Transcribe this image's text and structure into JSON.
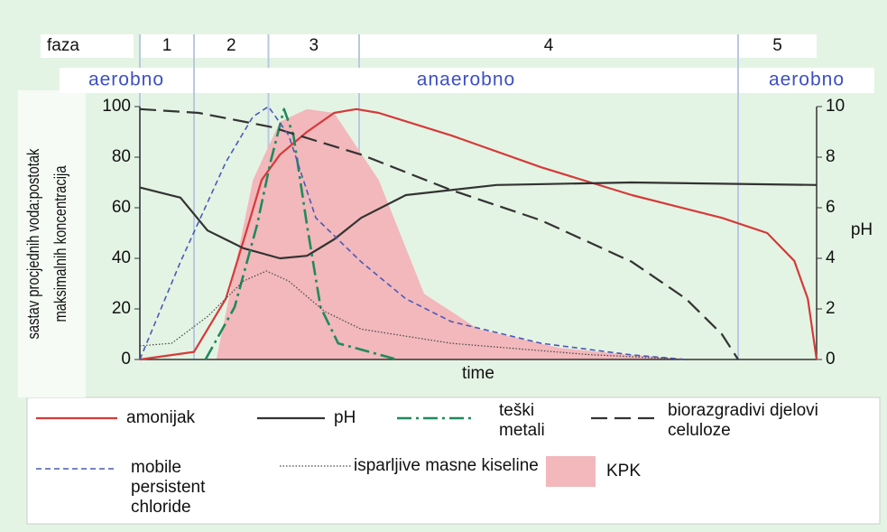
{
  "chart_data": {
    "type": "line",
    "phase_label": "faza",
    "phases": [
      {
        "label": "1",
        "start": 0,
        "end": 8
      },
      {
        "label": "2",
        "start": 8,
        "end": 19
      },
      {
        "label": "3",
        "start": 19,
        "end": 32.4
      },
      {
        "label": "4",
        "start": 32.4,
        "end": 88.4
      },
      {
        "label": "5",
        "start": 88.4,
        "end": 100
      }
    ],
    "regimes": [
      {
        "label": "aerobno",
        "start": 0,
        "end": 8
      },
      {
        "label": "anaerobno",
        "start": 8,
        "end": 88.4
      },
      {
        "label": "aerobno",
        "start": 88.4,
        "end": 100
      }
    ],
    "x_label": "time",
    "y_label": "sastav procjednih voda:postotak maksimalnih koncentracija",
    "y2_label": "pH",
    "xlim": [
      0,
      100
    ],
    "ylim": [
      0,
      100
    ],
    "yticks": [
      0,
      20,
      40,
      60,
      80,
      100
    ],
    "y2lim": [
      0,
      10
    ],
    "y2ticks": [
      0,
      2,
      4,
      6,
      8,
      10
    ],
    "series": [
      {
        "name": "amonijak",
        "color": "#d63a3a",
        "style": "solid",
        "x": [
          0,
          8,
          12.7,
          16,
          18,
          20.7,
          24.7,
          28.7,
          32,
          35.3,
          46,
          59.3,
          72.7,
          86,
          92.7,
          96.7,
          98.7,
          100
        ],
        "values": [
          0,
          3,
          24,
          53,
          71,
          81,
          90,
          97.5,
          99,
          97.5,
          88.6,
          76,
          65,
          56,
          50,
          39,
          24,
          0
        ]
      },
      {
        "name": "pH",
        "color": "#333333",
        "style": "solid",
        "axis": "y2",
        "x": [
          0,
          6,
          10,
          15.3,
          20.7,
          24.7,
          28.7,
          32.7,
          39.3,
          52.7,
          72.7,
          100
        ],
        "values": [
          6.8,
          6.4,
          5.1,
          4.4,
          4.0,
          4.1,
          4.75,
          5.6,
          6.5,
          6.9,
          7.0,
          6.9
        ]
      },
      {
        "name": "teški metali",
        "color": "#1f8a5c",
        "style": "dashdot",
        "x": [
          9.7,
          14,
          17.3,
          19.3,
          21.3,
          22.7,
          24.7,
          26.7,
          29.3,
          38
        ],
        "values": [
          0,
          20.7,
          53,
          78,
          99,
          88.6,
          53,
          20.7,
          6.4,
          0
        ]
      },
      {
        "name": "biorazgradivi djelovi celuloze",
        "color": "#333333",
        "style": "dashed",
        "x": [
          0,
          8.7,
          19.3,
          32.7,
          46,
          59.3,
          72.7,
          80.7,
          86,
          88.4
        ],
        "values": [
          99,
          97.5,
          92,
          81,
          67,
          55,
          38.6,
          24,
          10,
          0
        ]
      },
      {
        "name": "mobile persistent chloride",
        "color": "#4a5ab8",
        "style": "shortdash",
        "x": [
          0,
          6,
          12.7,
          16.7,
          19,
          22,
          26,
          32.7,
          39.3,
          46,
          59.3,
          72.7,
          80.7
        ],
        "values": [
          0,
          38.6,
          78,
          96,
          100,
          88.6,
          56,
          38.6,
          24,
          15,
          6.4,
          1.8,
          0
        ]
      },
      {
        "name": "isparljive masne kiseline",
        "color": "#444444",
        "style": "dotted",
        "x": [
          0,
          4.7,
          10,
          15.3,
          18.7,
          22,
          27.3,
          32.7,
          46,
          66,
          80.7
        ],
        "values": [
          5.4,
          6.4,
          17,
          31,
          35,
          31,
          19,
          12,
          6.4,
          2,
          0
        ]
      },
      {
        "name": "KPK",
        "color": "#f2b8bc",
        "style": "area",
        "x": [
          11.3,
          16.7,
          20.7,
          24.7,
          28.7,
          35.3,
          42,
          50,
          62,
          72.7,
          82
        ],
        "values": [
          0,
          71,
          94,
          99,
          97.5,
          71,
          26,
          12,
          4.6,
          1.8,
          0
        ]
      }
    ]
  }
}
